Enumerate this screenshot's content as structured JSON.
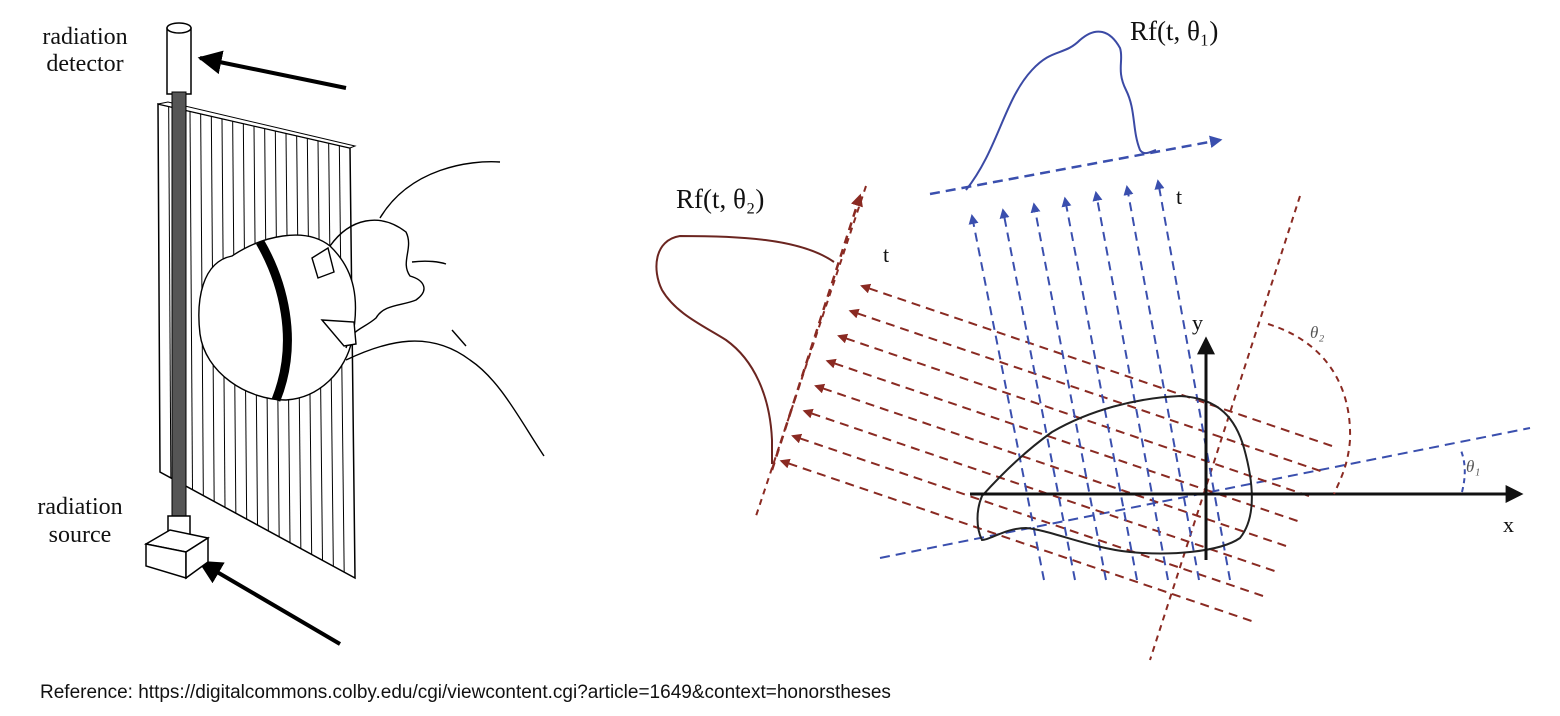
{
  "left_diagram": {
    "detector_label_line1": "radiation",
    "detector_label_line2": "detector",
    "source_label_line1": "radiation",
    "source_label_line2": "source"
  },
  "right_diagram": {
    "proj1_label": "Rf(t, θ₁)",
    "proj2_label": "Rf(t, θ₂)",
    "t1_label": "t",
    "t2_label": "t",
    "x_label": "x",
    "y_label": "y",
    "theta1_label": "θ₁",
    "theta2_label": "θ₂",
    "colors": {
      "blue": "#3a4fae",
      "red": "#8a2a22",
      "axis": "#111111",
      "curve_blue": "#3b4aa5",
      "curve_red": "#6b2520"
    }
  },
  "footer": {
    "prefix": "Reference: ",
    "url": "https://digitalcommons.colby.edu/cgi/viewcontent.cgi?article=1649&context=honorstheses"
  }
}
